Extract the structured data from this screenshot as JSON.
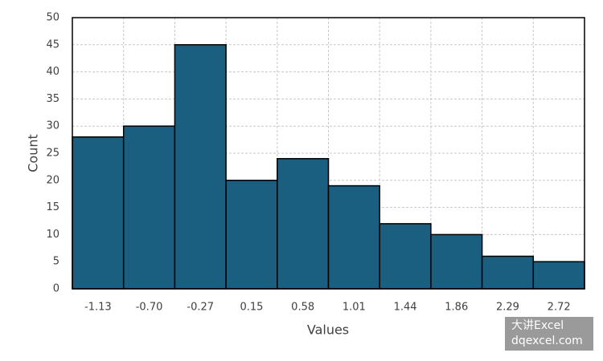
{
  "chart_data": {
    "type": "bar",
    "x_label": "Values",
    "y_label": "Count",
    "categories": [
      "-1.13",
      "-0.70",
      "-0.27",
      "0.15",
      "0.58",
      "1.01",
      "1.44",
      "1.86",
      "2.29",
      "2.72"
    ],
    "values": [
      28,
      30,
      45,
      20,
      24,
      19,
      12,
      10,
      6,
      5
    ],
    "color": "#1a5e80",
    "ylim": [
      0,
      50
    ],
    "yticks": [
      0,
      5,
      10,
      15,
      20,
      25,
      30,
      35,
      40,
      45,
      50
    ],
    "grid": true
  },
  "watermark": {
    "line1": "大讲Excel",
    "line2": "dqexcel.com"
  }
}
